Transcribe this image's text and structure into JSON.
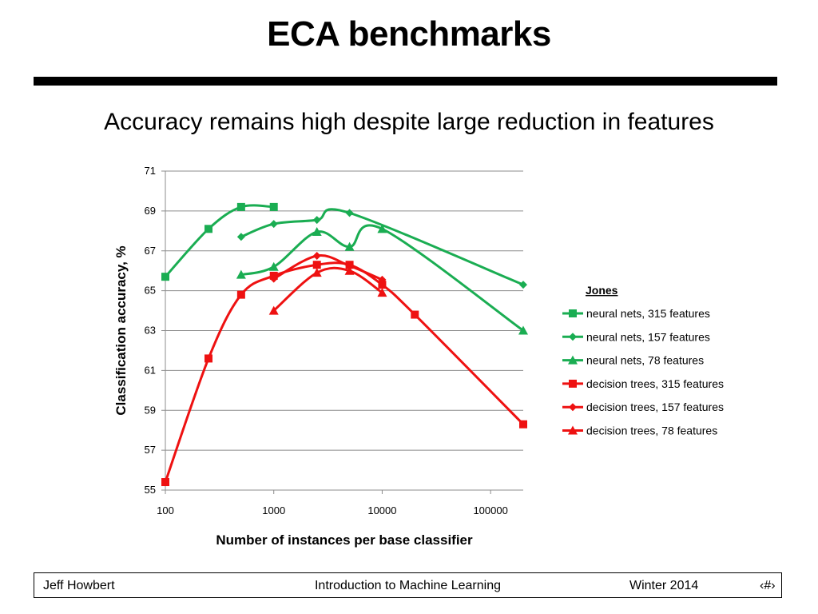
{
  "slide": {
    "title": "ECA benchmarks",
    "subtitle": "Accuracy remains high despite large reduction in features"
  },
  "footer": {
    "author": "Jeff Howbert",
    "course": "Introduction to Machine Learning",
    "term": "Winter 2014",
    "page": "‹#›"
  },
  "chart_data": {
    "type": "line",
    "title": "",
    "xlabel": "Number of instances  per base classifier",
    "ylabel": "Classification  accuracy, %",
    "x_scale": "log",
    "xlim": [
      100,
      200000
    ],
    "ylim": [
      55,
      71
    ],
    "x_ticks": [
      "100",
      "1000",
      "10000",
      "100000"
    ],
    "y_ticks": [
      "55",
      "57",
      "59",
      "61",
      "63",
      "65",
      "67",
      "69",
      "71"
    ],
    "grid": "horizontal",
    "legend_title": "Jones",
    "legend_position": "right",
    "series": [
      {
        "name": "neural nets, 315 features",
        "color": "#1aad52",
        "marker": "square",
        "points": [
          [
            100,
            65.7
          ],
          [
            250,
            68.1
          ],
          [
            500,
            69.2
          ],
          [
            1000,
            69.2
          ]
        ]
      },
      {
        "name": "neural nets, 157 features",
        "color": "#1aad52",
        "marker": "diamond",
        "points": [
          [
            500,
            67.7
          ],
          [
            1000,
            68.35
          ],
          [
            2500,
            68.55
          ],
          [
            5000,
            68.9
          ],
          [
            200000,
            65.3
          ]
        ]
      },
      {
        "name": "neural nets, 78 features",
        "color": "#1aad52",
        "marker": "triangle",
        "points": [
          [
            500,
            65.8
          ],
          [
            1000,
            66.2
          ],
          [
            2500,
            67.95
          ],
          [
            5000,
            67.2
          ],
          [
            10000,
            68.1
          ],
          [
            200000,
            63.0
          ]
        ]
      },
      {
        "name": "decision trees, 315 features",
        "color": "#ee1111",
        "marker": "square",
        "points": [
          [
            100,
            55.4
          ],
          [
            250,
            61.6
          ],
          [
            500,
            64.8
          ],
          [
            1000,
            65.75
          ],
          [
            2500,
            66.3
          ],
          [
            5000,
            66.3
          ],
          [
            10000,
            65.3
          ],
          [
            20000,
            63.8
          ],
          [
            200000,
            58.3
          ]
        ]
      },
      {
        "name": "decision trees, 157 features",
        "color": "#ee1111",
        "marker": "diamond",
        "points": [
          [
            1000,
            65.6
          ],
          [
            2500,
            66.75
          ],
          [
            5000,
            66.25
          ],
          [
            10000,
            65.55
          ]
        ]
      },
      {
        "name": "decision trees, 78 features",
        "color": "#ee1111",
        "marker": "triangle",
        "points": [
          [
            1000,
            64.0
          ],
          [
            2500,
            65.9
          ],
          [
            5000,
            66.0
          ],
          [
            10000,
            64.9
          ]
        ]
      }
    ]
  }
}
